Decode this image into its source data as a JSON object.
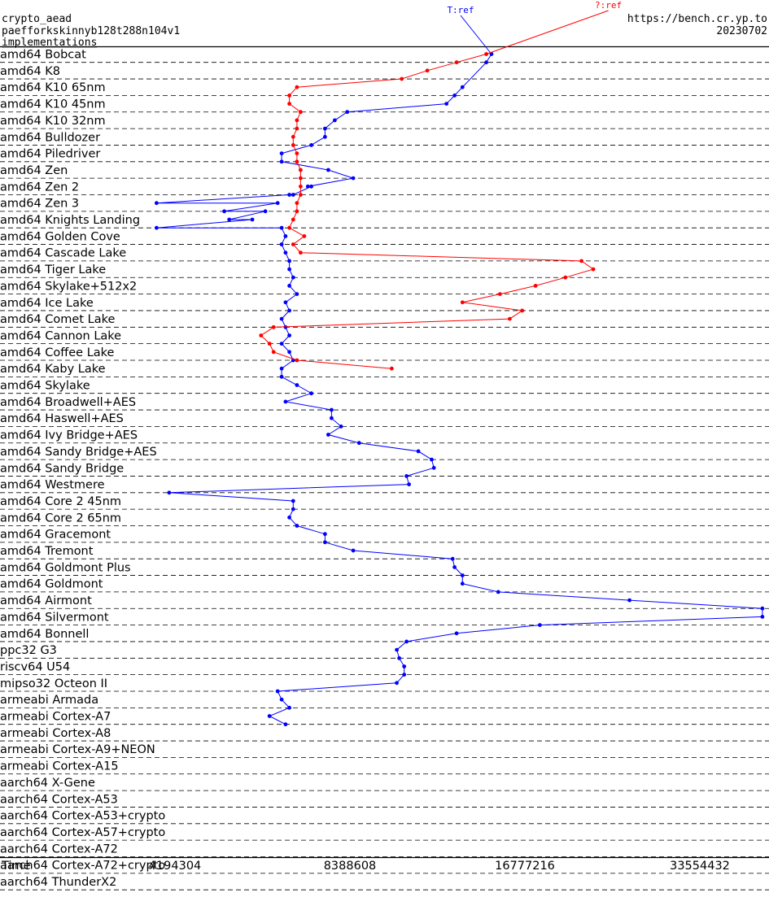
{
  "header": {
    "primitive": "crypto_aead",
    "implementation": "paefforkskinnyb128t288n104v1",
    "subtitle": "implementations",
    "site": "https://bench.cr.yp.to",
    "date": "20230702"
  },
  "chart_data": {
    "type": "line",
    "x_label": "Time",
    "x_scale": "log2",
    "x_ticks": [
      4194304,
      8388608,
      16777216,
      33554432
    ],
    "categories": [
      "amd64 Bobcat",
      "amd64 K8",
      "amd64 K10 65nm",
      "amd64 K10 45nm",
      "amd64 K10 32nm",
      "amd64 Bulldozer",
      "amd64 Piledriver",
      "amd64 Zen",
      "amd64 Zen 2",
      "amd64 Zen 3",
      "amd64 Knights Landing",
      "amd64 Golden Cove",
      "amd64 Cascade Lake",
      "amd64 Tiger Lake",
      "amd64 Skylake+512x2",
      "amd64 Ice Lake",
      "amd64 Comet Lake",
      "amd64 Cannon Lake",
      "amd64 Coffee Lake",
      "amd64 Kaby Lake",
      "amd64 Skylake",
      "amd64 Broadwell+AES",
      "amd64 Haswell+AES",
      "amd64 Ivy Bridge+AES",
      "amd64 Sandy Bridge+AES",
      "amd64 Sandy Bridge",
      "amd64 Westmere",
      "amd64 Core 2 45nm",
      "amd64 Core 2 65nm",
      "amd64 Gracemont",
      "amd64 Tremont",
      "amd64 Goldmont Plus",
      "amd64 Goldmont",
      "amd64 Airmont",
      "amd64 Silvermont",
      "amd64 Bonnell",
      "ppc32 G3",
      "riscv64 U54",
      "mipso32 Octeon II",
      "armeabi Armada",
      "armeabi Cortex-A7",
      "armeabi Cortex-A8",
      "armeabi Cortex-A9+NEON",
      "armeabi Cortex-A15",
      "aarch64 X-Gene",
      "aarch64 Cortex-A53",
      "aarch64 Cortex-A53+crypto",
      "aarch64 Cortex-A57+crypto",
      "aarch64 Cortex-A72",
      "aarch64 Cortex-A72+crypto",
      "aarch64 ThunderX2"
    ],
    "series": [
      {
        "name": "T:ref",
        "color": "#0000ff",
        "points": [
          [
            0,
            14700000
          ],
          [
            1,
            14400000
          ],
          [
            4,
            13100000
          ],
          [
            5,
            12700000
          ],
          [
            6,
            12300000
          ],
          [
            7,
            8300000
          ],
          [
            8,
            7900000
          ],
          [
            9,
            7600000
          ],
          [
            10,
            7600000
          ],
          [
            11,
            7200000
          ],
          [
            12,
            6400000
          ],
          [
            13,
            6400000
          ],
          [
            14,
            7700000
          ],
          [
            15,
            8500000
          ],
          [
            16,
            7100000
          ],
          [
            16,
            7200000
          ],
          [
            17,
            6700000
          ],
          [
            17,
            6600000
          ],
          [
            18,
            3900000
          ],
          [
            18,
            6300000
          ],
          [
            19,
            5100000
          ],
          [
            19,
            6000000
          ],
          [
            20,
            5200000
          ],
          [
            20,
            5700000
          ],
          [
            21,
            3900000
          ],
          [
            21,
            6400000
          ],
          [
            22,
            6500000
          ],
          [
            23,
            6400000
          ],
          [
            24,
            6500000
          ],
          [
            25,
            6600000
          ],
          [
            26,
            6600000
          ],
          [
            27,
            6700000
          ],
          [
            28,
            6600000
          ],
          [
            29,
            6800000
          ],
          [
            30,
            6500000
          ],
          [
            31,
            6600000
          ],
          [
            32,
            6400000
          ],
          [
            33,
            6500000
          ],
          [
            34,
            6600000
          ],
          [
            35,
            6400000
          ],
          [
            36,
            6600000
          ],
          [
            37,
            6700000
          ],
          [
            38,
            6400000
          ],
          [
            39,
            6400000
          ],
          [
            40,
            6800000
          ],
          [
            41,
            7200000
          ],
          [
            42,
            6500000
          ],
          [
            43,
            7800000
          ],
          [
            44,
            7800000
          ],
          [
            45,
            8100000
          ],
          [
            46,
            7700000
          ],
          [
            47,
            8700000
          ],
          [
            48,
            11000000
          ],
          [
            49,
            11600000
          ],
          [
            50,
            11700000
          ],
          [
            51,
            10500000
          ],
          [
            52,
            10600000
          ],
          [
            53,
            4100000
          ],
          [
            54,
            6700000
          ],
          [
            55,
            6700000
          ],
          [
            56,
            6600000
          ],
          [
            57,
            6800000
          ],
          [
            58,
            7600000
          ],
          [
            59,
            7600000
          ],
          [
            60,
            8500000
          ],
          [
            61,
            12600000
          ],
          [
            62,
            12700000
          ],
          [
            63,
            13100000
          ],
          [
            64,
            13100000
          ],
          [
            65,
            15100000
          ],
          [
            66,
            25400000
          ],
          [
            67,
            43000000
          ],
          [
            68,
            43000000
          ],
          [
            69,
            17800000
          ],
          [
            70,
            12800000
          ],
          [
            71,
            10500000
          ],
          [
            72,
            10100000
          ],
          [
            73,
            10200000
          ],
          [
            74,
            10400000
          ],
          [
            75,
            10400000
          ],
          [
            76,
            10100000
          ],
          [
            77,
            6300000
          ],
          [
            78,
            6400000
          ],
          [
            79,
            6600000
          ],
          [
            80,
            6100000
          ],
          [
            81,
            6500000
          ]
        ]
      },
      {
        "name": "?:ref",
        "color": "#ff0000",
        "points": [
          [
            0,
            14400000
          ],
          [
            1,
            12800000
          ],
          [
            2,
            11400000
          ],
          [
            3,
            10300000
          ],
          [
            4,
            6800000
          ],
          [
            5,
            6600000
          ],
          [
            6,
            6600000
          ],
          [
            7,
            6900000
          ],
          [
            8,
            6800000
          ],
          [
            9,
            6800000
          ],
          [
            10,
            6700000
          ],
          [
            11,
            6700000
          ],
          [
            12,
            6800000
          ],
          [
            13,
            6800000
          ],
          [
            14,
            6900000
          ],
          [
            15,
            6900000
          ],
          [
            16,
            6900000
          ],
          [
            17,
            6900000
          ],
          [
            18,
            6800000
          ],
          [
            19,
            6800000
          ],
          [
            20,
            6700000
          ],
          [
            21,
            6600000
          ],
          [
            22,
            7000000
          ],
          [
            23,
            6700000
          ],
          [
            24,
            6900000
          ],
          [
            25,
            21000000
          ],
          [
            26,
            22000000
          ],
          [
            27,
            19700000
          ],
          [
            28,
            17500000
          ],
          [
            29,
            15200000
          ],
          [
            30,
            13100000
          ],
          [
            31,
            16600000
          ],
          [
            32,
            15800000
          ],
          [
            33,
            6200000
          ],
          [
            34,
            5900000
          ],
          [
            35,
            6100000
          ],
          [
            36,
            6200000
          ],
          [
            37,
            6800000
          ],
          [
            38,
            9900000
          ]
        ]
      }
    ]
  }
}
